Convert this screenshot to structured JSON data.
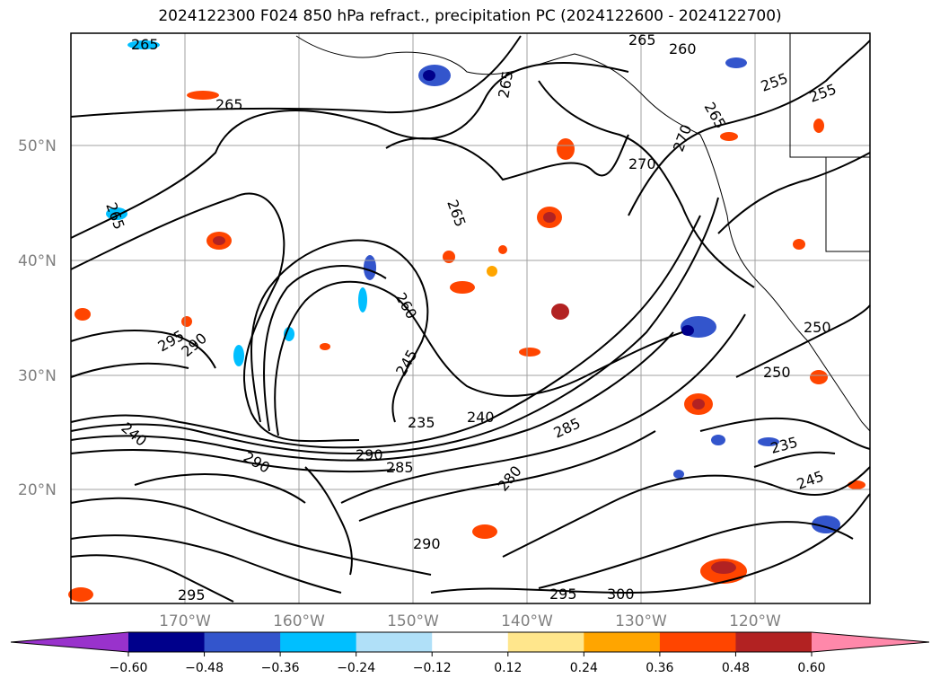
{
  "title": "2024122300 F024 850 hPa refract., precipitation PC (2024122600 - 2024122700)",
  "lat_labels": [
    "50°N",
    "40°N",
    "30°N",
    "20°N"
  ],
  "lon_labels": [
    "170°W",
    "160°W",
    "150°W",
    "140°W",
    "130°W",
    "120°W"
  ],
  "colorbar": {
    "ticks": [
      "−0.60",
      "−0.48",
      "−0.36",
      "−0.24",
      "−0.12",
      "0.12",
      "0.24",
      "0.36",
      "0.48",
      "0.60"
    ],
    "colors": [
      "#9932cc",
      "#00008b",
      "#3355cc",
      "#00bfff",
      "#b0e0f8",
      "#ffffff",
      "#ffe68c",
      "#ffa500",
      "#ff4500",
      "#b22222",
      "#ff88aa"
    ]
  },
  "contour_labels": [
    "265",
    "265",
    "265",
    "265",
    "265",
    "265",
    "260",
    "255",
    "255",
    "270",
    "265",
    "250",
    "250",
    "245",
    "235",
    "235",
    "240",
    "240",
    "245",
    "290",
    "290",
    "285",
    "285",
    "290",
    "295",
    "295",
    "300",
    "290",
    "295",
    "280",
    "260",
    "270"
  ],
  "colors": {
    "contour": "#000000",
    "grid": "#a0a0a0",
    "coast": "#000000"
  }
}
